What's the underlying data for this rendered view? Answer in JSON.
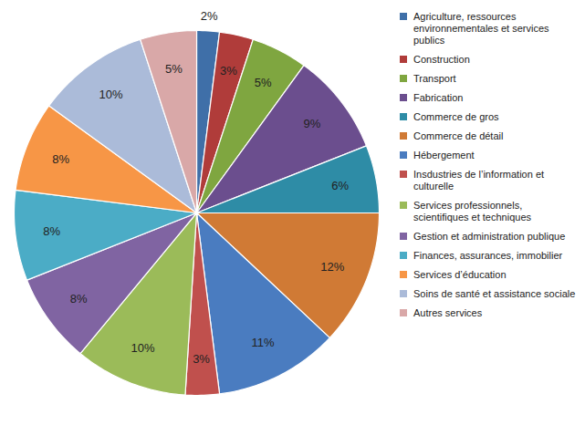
{
  "chart_data": {
    "type": "pie",
    "categories": [
      "Agriculture, ressources environnementales et services publics",
      "Construction",
      "Transport",
      "Fabrication",
      "Commerce de gros",
      "Commerce de détail",
      "Hébergement",
      "Insdustries de l’information et culturelle",
      "Services professionnels, scientifiques et techniques",
      "Gestion et administration publique",
      "Finances, assurances, immobilier",
      "Services d’éducation",
      "Soins de santé et assistance sociale",
      "Autres services"
    ],
    "values": [
      2,
      3,
      5,
      9,
      6,
      12,
      11,
      3,
      10,
      8,
      8,
      8,
      10,
      5
    ],
    "value_labels": [
      "2%",
      "3%",
      "5%",
      "9%",
      "6%",
      "12%",
      "11%",
      "3%",
      "10%",
      "8%",
      "8%",
      "8%",
      "10%",
      "5%"
    ],
    "colors": [
      "#3f6fa8",
      "#b03c3a",
      "#7fa640",
      "#6b4e8e",
      "#2e8ca6",
      "#d07a35",
      "#4a7cc0",
      "#c0504d",
      "#9bbb59",
      "#8064a2",
      "#4bacc6",
      "#f79646",
      "#abbbd9",
      "#d9a8a8"
    ],
    "data_labels": true,
    "legend": "right"
  }
}
